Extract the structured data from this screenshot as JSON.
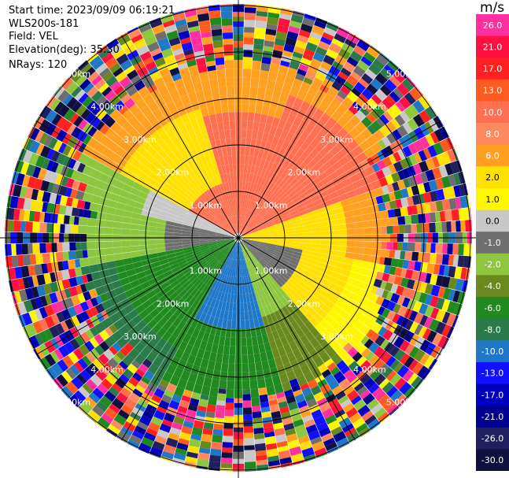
{
  "header": {
    "start_time": "Start time: 2023/09/09 06:19:21",
    "instrument": "WLS200s-181",
    "field": "Field: VEL",
    "elevation": "Elevation(deg): 35.30",
    "nrays": "NRays: 120"
  },
  "range_labels": [
    "1.00km",
    "2.00km",
    "3.00km",
    "4.00km",
    "5.00km"
  ],
  "colorbar": {
    "unit": "m/s",
    "ticks": [
      "26.0",
      "21.0",
      "17.0",
      "13.0",
      "10.0",
      "8.0",
      "6.0",
      "2.0",
      "1.0",
      "0.0",
      "-1.0",
      "-2.0",
      "-4.0",
      "-6.0",
      "-8.0",
      "-10.0",
      "-13.0",
      "-17.0",
      "-21.0",
      "-26.0",
      "-30.0"
    ],
    "colors": [
      "#ff2fa0",
      "#ff1040",
      "#ff2020",
      "#ff5a20",
      "#ff7050",
      "#ff8a60",
      "#ffa020",
      "#ffe000",
      "#fff700",
      "#c8c8c8",
      "#6e6e6e",
      "#8dc63f",
      "#6a8a1e",
      "#208a20",
      "#2a7a4a",
      "#1f77c8",
      "#1010ff",
      "#0000c0",
      "#000090",
      "#202060",
      "#101040"
    ]
  }
}
